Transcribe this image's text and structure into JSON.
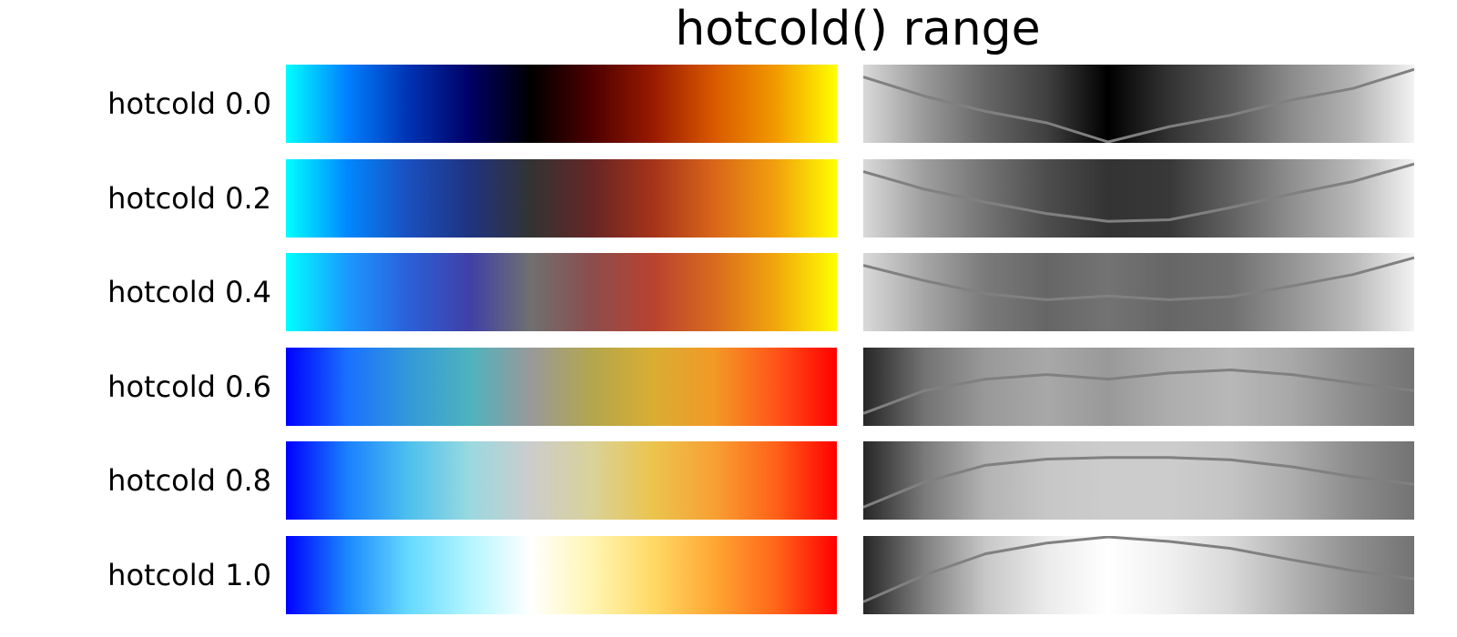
{
  "chart_data": {
    "type": "colormap",
    "title": "hotcold() range",
    "rows": [
      {
        "label": "hotcold 0.0",
        "colors": [
          "#00ffff",
          "#0080ff",
          "#0033b3",
          "#000066",
          "#000000",
          "#4d0000",
          "#991a00",
          "#d95900",
          "#f29900",
          "#ffff00"
        ],
        "lightness": [
          0.85,
          0.6,
          0.4,
          0.25,
          0.0,
          0.2,
          0.35,
          0.55,
          0.7,
          0.95
        ]
      },
      {
        "label": "hotcold 0.2",
        "colors": [
          "#00ffff",
          "#0088ff",
          "#1a4fbf",
          "#1f3380",
          "#333333",
          "#662626",
          "#a6331a",
          "#d96619",
          "#f2a00d",
          "#ffff00"
        ],
        "lightness": [
          0.85,
          0.62,
          0.45,
          0.3,
          0.2,
          0.22,
          0.38,
          0.56,
          0.72,
          0.95
        ]
      },
      {
        "label": "hotcold 0.4",
        "colors": [
          "#00ffff",
          "#1a99ff",
          "#2b5fd9",
          "#4040a6",
          "#707070",
          "#8c4d4d",
          "#b84230",
          "#d96a1f",
          "#f2a60d",
          "#ffff00"
        ],
        "lightness": [
          0.85,
          0.65,
          0.48,
          0.4,
          0.45,
          0.4,
          0.44,
          0.58,
          0.73,
          0.95
        ]
      },
      {
        "label": "hotcold 0.6",
        "colors": [
          "#0000ff",
          "#1a70ff",
          "#3399d9",
          "#4db3bf",
          "#999999",
          "#b3a64d",
          "#d9ad33",
          "#f29926",
          "#ff5519",
          "#ff0000"
        ],
        "lightness": [
          0.15,
          0.45,
          0.6,
          0.66,
          0.6,
          0.68,
          0.72,
          0.66,
          0.55,
          0.45
        ]
      },
      {
        "label": "hotcold 0.8",
        "colors": [
          "#0000ff",
          "#1a80ff",
          "#4dc0ee",
          "#99d9e0",
          "#cccccc",
          "#d9d299",
          "#ebc44d",
          "#f7a033",
          "#ff6219",
          "#ff0000"
        ],
        "lightness": [
          0.15,
          0.48,
          0.7,
          0.78,
          0.8,
          0.8,
          0.77,
          0.68,
          0.55,
          0.45
        ]
      },
      {
        "label": "hotcold 1.0",
        "colors": [
          "#0000ff",
          "#1a88ff",
          "#66d9ff",
          "#b3f5ff",
          "#ffffff",
          "#fff5b3",
          "#ffd966",
          "#ffa633",
          "#ff6619",
          "#ff0000"
        ],
        "lightness": [
          0.15,
          0.5,
          0.78,
          0.92,
          1.0,
          0.94,
          0.85,
          0.7,
          0.56,
          0.45
        ]
      }
    ]
  }
}
